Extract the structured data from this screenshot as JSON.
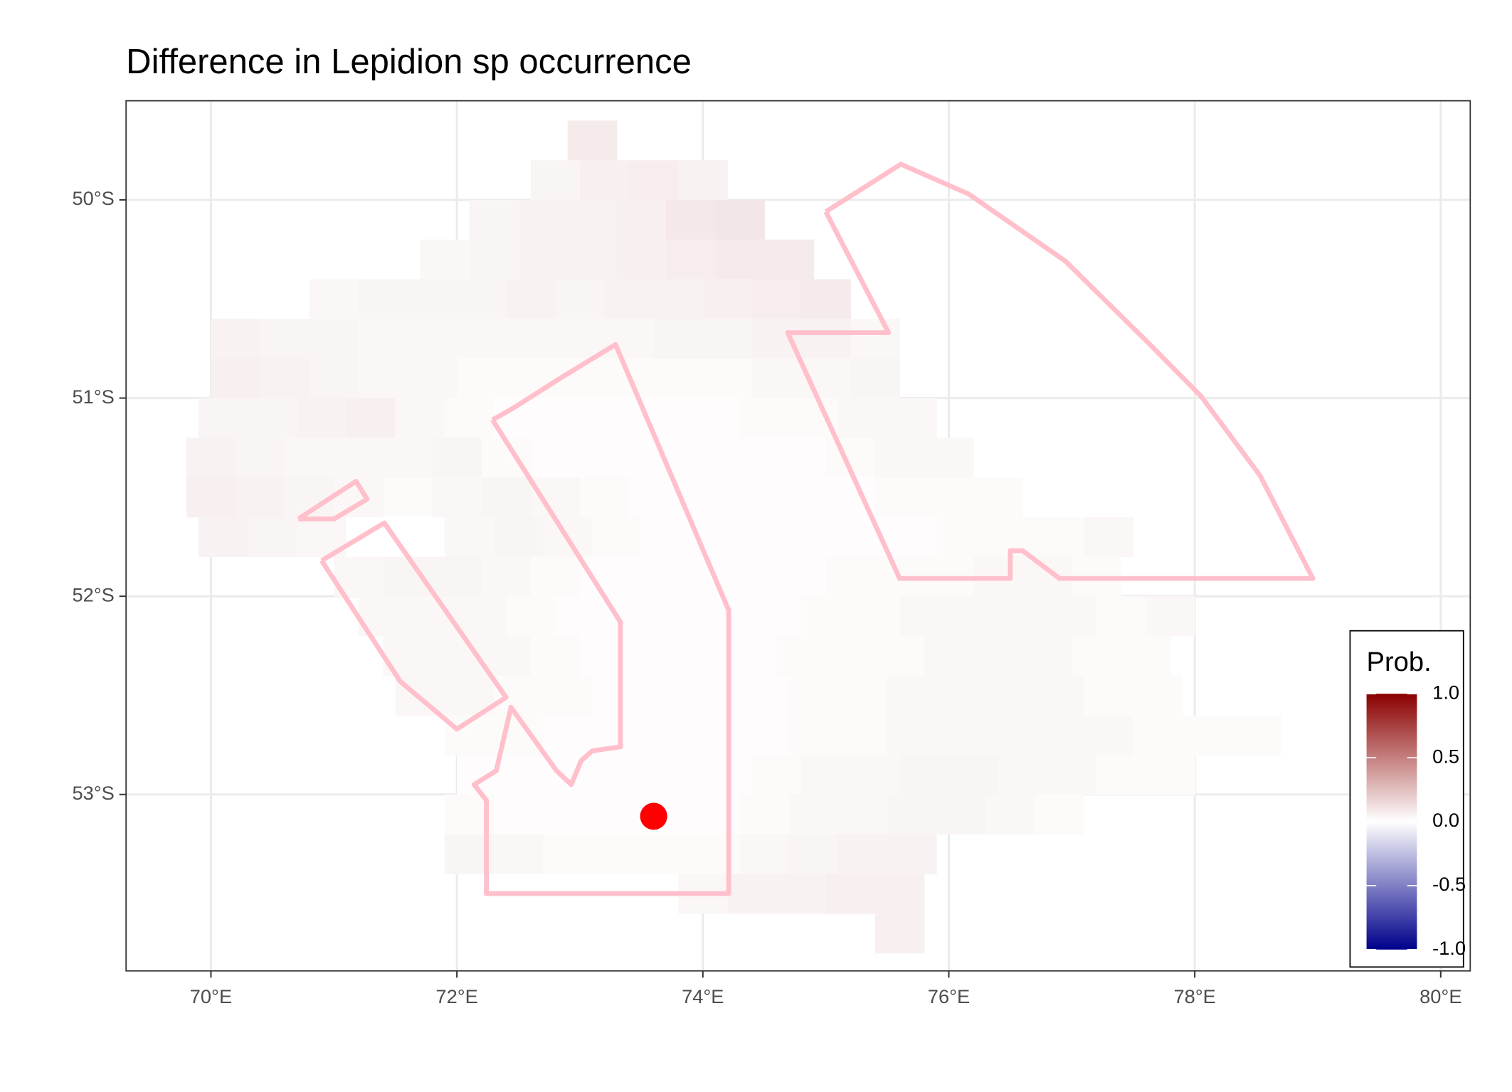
{
  "chart_data": {
    "type": "raster-map",
    "title": "Difference in  Lepidion sp occurrence",
    "xlim": [
      69.31,
      80.24
    ],
    "ylim": [
      -53.89,
      -49.5
    ],
    "xticks": [
      {
        "value": 70,
        "label": "70°E"
      },
      {
        "value": 72,
        "label": "72°E"
      },
      {
        "value": 74,
        "label": "74°E"
      },
      {
        "value": 76,
        "label": "76°E"
      },
      {
        "value": 78,
        "label": "78°E"
      },
      {
        "value": 80,
        "label": "80°E"
      }
    ],
    "yticks": [
      {
        "value": -50,
        "label": "50°S"
      },
      {
        "value": -51,
        "label": "51°S"
      },
      {
        "value": -52,
        "label": "52°S"
      },
      {
        "value": -53,
        "label": "53°S"
      }
    ],
    "grid": true,
    "legend_title": "Prob.",
    "legend_position": "bottom-right",
    "color_scale": {
      "low": "#00008b",
      "mid": "#ffffff",
      "high": "#8b0000",
      "limits": [
        -1,
        1
      ]
    },
    "colorbar_ticks": [
      {
        "value": 1,
        "label": "1.0"
      },
      0.5,
      {
        "value": 0,
        "label": "0.0"
      },
      -0.5,
      {
        "value": -1,
        "label": "-1.0"
      }
    ],
    "resolution": [
      0.4,
      0.2
    ],
    "raster": [
      {
        "lat": -49.7,
        "lon0": 72.9,
        "values": [
          0.08
        ]
      },
      {
        "lat": -49.9,
        "lon0": 72.6,
        "values": [
          0.04,
          0.06,
          0.07,
          0.05
        ]
      },
      {
        "lat": -50.1,
        "lon0": 72.1,
        "values": [
          0.04,
          0.05,
          0.05,
          0.06,
          0.09,
          0.1
        ]
      },
      {
        "lat": -50.3,
        "lon0": 71.7,
        "values": [
          0.03,
          0.04,
          0.05,
          0.05,
          0.06,
          0.07,
          0.08,
          0.08
        ]
      },
      {
        "lat": -50.5,
        "lon0": 70.8,
        "values": [
          0.03,
          0.04,
          0.04,
          0.04,
          0.05,
          0.04,
          0.05,
          0.05,
          0.06,
          0.07,
          0.08
        ]
      },
      {
        "lat": -50.7,
        "lon0": 70.0,
        "values": [
          0.05,
          0.04,
          0.04,
          0.03,
          0.03,
          0.03,
          0.03,
          0.03,
          0.03,
          0.04,
          0.04,
          0.05,
          0.05,
          0.03
        ]
      },
      {
        "lat": -50.9,
        "lon0": 70.0,
        "values": [
          0.06,
          0.05,
          0.04,
          0.03,
          0.03,
          0.02,
          0.02,
          0.02,
          0.02,
          0.02,
          0.02,
          0.03,
          0.03,
          0.04
        ]
      },
      {
        "lat": -51.1,
        "lon0": 69.9,
        "values": [
          0.04,
          0.04,
          0.05,
          0.06,
          0.03,
          0.02,
          0.01,
          0.01,
          0.01,
          0.01,
          0.01,
          0.02,
          0.02,
          0.03,
          0.03
        ]
      },
      {
        "lat": -51.3,
        "lon0": 69.8,
        "values": [
          0.05,
          0.04,
          0.03,
          0.03,
          0.03,
          0.04,
          0.02,
          0.01,
          0.01,
          0.01,
          0.01,
          0.01,
          0.01,
          0.02,
          0.03,
          0.03
        ]
      },
      {
        "lat": -51.5,
        "lon0": 69.8,
        "values": [
          0.06,
          0.05,
          0.04,
          0.03,
          0.02,
          0.03,
          0.04,
          0.03,
          0.02,
          0.01,
          0.01,
          0.01,
          0.01,
          0.01,
          0.02,
          0.02,
          0.02
        ]
      },
      {
        "lat": -51.7,
        "lon0": 69.9,
        "values": [
          0.05,
          0.04,
          0.03,
          0,
          0,
          0.03,
          0.04,
          0.03,
          0.02,
          0.01,
          0.01,
          0.01,
          0.01,
          0.01,
          0.01,
          0.02,
          0.02,
          0.02,
          0.03
        ]
      },
      {
        "lat": -51.9,
        "lon0": 71.0,
        "values": [
          0.03,
          0.04,
          0.04,
          0.03,
          0.02,
          0.01,
          0.01,
          0.01,
          0.01,
          0.01,
          0.02,
          0.02,
          0.02,
          0.03,
          0.03,
          0.02
        ]
      },
      {
        "lat": -52.1,
        "lon0": 71.2,
        "values": [
          0.03,
          0.03,
          0.03,
          0.02,
          0.01,
          0.01,
          0.01,
          0.01,
          0.01,
          0.02,
          0.02,
          0.03,
          0.03,
          0.03,
          0.03,
          0.02,
          0.03
        ]
      },
      {
        "lat": -52.3,
        "lon0": 71.4,
        "values": [
          0.03,
          0.03,
          0.03,
          0.02,
          0.01,
          0.01,
          0.01,
          0.01,
          0.02,
          0.02,
          0.02,
          0.03,
          0.03,
          0.03,
          0.02,
          0.02
        ]
      },
      {
        "lat": -52.5,
        "lon0": 71.5,
        "values": [
          0.03,
          0.03,
          0.02,
          0.02,
          0.01,
          0.01,
          0.01,
          0.01,
          0.02,
          0.02,
          0.03,
          0.03,
          0.03,
          0.03,
          0.02,
          0.02
        ]
      },
      {
        "lat": -52.7,
        "lon0": 71.9,
        "values": [
          0.02,
          0.02,
          0.01,
          0.01,
          0.01,
          0.01,
          0.01,
          0.02,
          0.02,
          0.03,
          0.03,
          0.03,
          0.03,
          0.03,
          0.02,
          0.02,
          0.02
        ]
      },
      {
        "lat": -52.9,
        "lon0": 72.0,
        "values": [
          0.01,
          0.01,
          0.01,
          0.01,
          0.01,
          0.01,
          0.02,
          0.03,
          0.03,
          0.04,
          0.04,
          0.03,
          0.03,
          0.02,
          0.02
        ]
      },
      {
        "lat": -53.1,
        "lon0": 71.9,
        "values": [
          0.02,
          0.01,
          0.01,
          0.01,
          0.01,
          0.01,
          0.02,
          0.03,
          0.03,
          0.04,
          0.04,
          0.03,
          0.02
        ]
      },
      {
        "lat": -53.3,
        "lon0": 71.9,
        "values": [
          0.04,
          0.03,
          0.02,
          0.02,
          0.02,
          0.02,
          0.03,
          0.04,
          0.05,
          0.05
        ]
      },
      {
        "lat": -53.5,
        "lon0": 73.8,
        "values": [
          0.03,
          0.05,
          0.05,
          0.06,
          0.06
        ]
      },
      {
        "lat": -53.7,
        "lon0": 75.4,
        "values": [
          0.06
        ]
      }
    ],
    "polygons": [
      {
        "color": "#ffc0cb",
        "points": [
          [
            75.0,
            -50.06
          ],
          [
            75.61,
            -49.82
          ],
          [
            76.16,
            -49.97
          ],
          [
            76.95,
            -50.31
          ],
          [
            77.62,
            -50.72
          ],
          [
            78.05,
            -50.99
          ],
          [
            78.53,
            -51.39
          ],
          [
            78.96,
            -51.91
          ],
          [
            76.9,
            -51.91
          ],
          [
            76.6,
            -51.77
          ],
          [
            76.5,
            -51.77
          ],
          [
            76.5,
            -51.91
          ],
          [
            75.6,
            -51.91
          ],
          [
            74.69,
            -50.67
          ],
          [
            75.51,
            -50.67
          ],
          [
            75.0,
            -50.06
          ]
        ]
      },
      {
        "color": "#ffc0cb",
        "points": [
          [
            72.29,
            -51.11
          ],
          [
            72.46,
            -51.05
          ],
          [
            72.84,
            -50.9
          ],
          [
            73.29,
            -50.73
          ],
          [
            74.21,
            -52.07
          ],
          [
            74.21,
            -53.5
          ],
          [
            72.24,
            -53.5
          ],
          [
            72.24,
            -53.03
          ],
          [
            72.14,
            -52.95
          ],
          [
            72.32,
            -52.88
          ],
          [
            72.44,
            -52.56
          ],
          [
            72.81,
            -52.88
          ],
          [
            72.93,
            -52.95
          ],
          [
            73.01,
            -52.83
          ],
          [
            73.1,
            -52.78
          ],
          [
            73.33,
            -52.76
          ],
          [
            73.33,
            -52.13
          ],
          [
            72.29,
            -51.11
          ]
        ]
      },
      {
        "color": "#ffc0cb",
        "points": [
          [
            70.9,
            -51.82
          ],
          [
            71.41,
            -51.63
          ],
          [
            72.4,
            -52.51
          ],
          [
            72.0,
            -52.67
          ],
          [
            71.54,
            -52.43
          ],
          [
            70.9,
            -51.82
          ]
        ]
      },
      {
        "color": "#ffc0cb",
        "points": [
          [
            70.71,
            -51.61
          ],
          [
            71.18,
            -51.42
          ],
          [
            71.27,
            -51.51
          ],
          [
            71.0,
            -51.61
          ],
          [
            70.71,
            -51.61
          ]
        ]
      }
    ],
    "point": {
      "lon": 73.6,
      "lat": -53.11,
      "color": "#ff0000"
    }
  }
}
